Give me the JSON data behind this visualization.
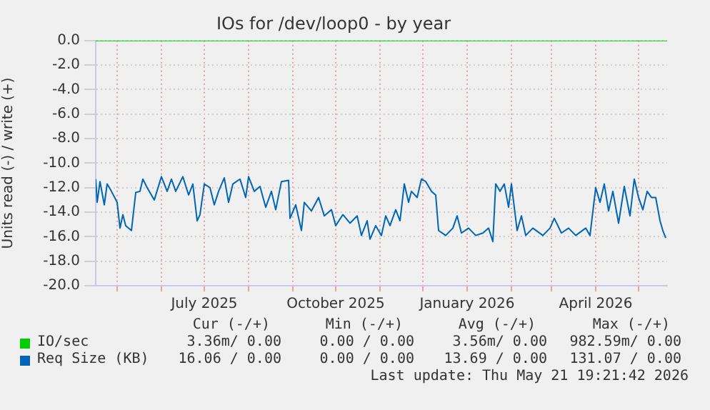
{
  "chart_data": {
    "type": "line",
    "title": "IOs for /dev/loop0 - by year",
    "ylabel": "Units read (-) / write (+)",
    "x": [
      "2025-04-16",
      "2025-04-17",
      "2025-04-19",
      "2025-04-22",
      "2025-04-24",
      "2025-04-27",
      "2025-05-01",
      "2025-05-03",
      "2025-05-05",
      "2025-05-07",
      "2025-05-11",
      "2025-05-14",
      "2025-05-17",
      "2025-05-19",
      "2025-05-22",
      "2025-05-27",
      "2025-06-01",
      "2025-06-05",
      "2025-06-08",
      "2025-06-11",
      "2025-06-16",
      "2025-06-20",
      "2025-06-23",
      "2025-06-26",
      "2025-06-28",
      "2025-07-01",
      "2025-07-05",
      "2025-07-08",
      "2025-07-11",
      "2025-07-15",
      "2025-07-18",
      "2025-07-21",
      "2025-07-26",
      "2025-07-30",
      "2025-08-01",
      "2025-08-05",
      "2025-08-09",
      "2025-08-13",
      "2025-08-17",
      "2025-08-20",
      "2025-08-24",
      "2025-08-29",
      "2025-08-30",
      "2025-09-03",
      "2025-09-07",
      "2025-09-09",
      "2025-09-14",
      "2025-09-19",
      "2025-09-23",
      "2025-09-28",
      "2025-10-01",
      "2025-10-06",
      "2025-10-11",
      "2025-10-16",
      "2025-10-19",
      "2025-10-23",
      "2025-10-25",
      "2025-10-29",
      "2025-11-02",
      "2025-11-05",
      "2025-11-08",
      "2025-11-12",
      "2025-11-15",
      "2025-11-18",
      "2025-11-21",
      "2025-11-23",
      "2025-11-27",
      "2025-11-30",
      "2025-12-03",
      "2025-12-07",
      "2025-12-10",
      "2025-12-12",
      "2025-12-17",
      "2025-12-22",
      "2025-12-25",
      "2025-12-28",
      "2026-01-02",
      "2026-01-07",
      "2026-01-12",
      "2026-01-16",
      "2026-01-19",
      "2026-01-21",
      "2026-01-24",
      "2026-01-27",
      "2026-01-30",
      "2026-02-01",
      "2026-02-05",
      "2026-02-08",
      "2026-02-11",
      "2026-02-16",
      "2026-02-23",
      "2026-02-28",
      "2026-03-03",
      "2026-03-08",
      "2026-03-13",
      "2026-03-18",
      "2026-03-25",
      "2026-03-28",
      "2026-04-01",
      "2026-04-04",
      "2026-04-07",
      "2026-04-10",
      "2026-04-13",
      "2026-04-17",
      "2026-04-21",
      "2026-04-25",
      "2026-04-28",
      "2026-05-01",
      "2026-05-04",
      "2026-05-07",
      "2026-05-10",
      "2026-05-13",
      "2026-05-16",
      "2026-05-18",
      "2026-05-20"
    ],
    "series": [
      {
        "name": "IO/sec",
        "color": "#00cc00",
        "x": [
          "2025-04-16",
          "2026-05-21"
        ],
        "values": [
          0,
          0
        ]
      },
      {
        "name": "Req Size (KB)",
        "color": "#0066b3",
        "values": [
          -11.3,
          -13.2,
          -11.5,
          -13.4,
          -11.7,
          -12.3,
          -13.2,
          -15.3,
          -14.2,
          -15.1,
          -15.5,
          -12.4,
          -12.3,
          -11.3,
          -12.0,
          -13.0,
          -11.1,
          -12.3,
          -11.3,
          -12.3,
          -11.1,
          -12.6,
          -11.7,
          -14.7,
          -14.2,
          -11.7,
          -12.0,
          -13.4,
          -12.3,
          -11.2,
          -13.2,
          -11.7,
          -11.3,
          -12.8,
          -11.1,
          -12.3,
          -11.9,
          -13.6,
          -12.3,
          -13.8,
          -11.5,
          -11.4,
          -14.5,
          -13.4,
          -15.5,
          -13.2,
          -13.9,
          -12.8,
          -14.3,
          -13.8,
          -15.1,
          -14.2,
          -14.9,
          -14.3,
          -15.9,
          -14.7,
          -16.2,
          -15.1,
          -15.9,
          -14.3,
          -15.1,
          -13.8,
          -14.7,
          -11.7,
          -13.2,
          -12.3,
          -12.8,
          -11.3,
          -11.5,
          -12.3,
          -12.6,
          -15.5,
          -15.9,
          -15.3,
          -14.3,
          -15.7,
          -15.3,
          -15.9,
          -15.7,
          -15.3,
          -16.4,
          -11.7,
          -12.3,
          -11.7,
          -13.6,
          -11.7,
          -15.5,
          -14.3,
          -15.9,
          -15.3,
          -15.9,
          -15.3,
          -14.5,
          -15.7,
          -15.3,
          -15.9,
          -15.3,
          -15.9,
          -12.0,
          -13.2,
          -11.7,
          -13.9,
          -12.3,
          -14.9,
          -11.9,
          -14.3,
          -11.3,
          -12.8,
          -13.8,
          -12.3,
          -12.8,
          -12.8,
          -14.7,
          -15.5,
          -16.1
        ]
      }
    ],
    "xlim": [
      "2025-04-16",
      "2026-05-21"
    ],
    "xticks": [
      {
        "value": "2025-05-01",
        "label": null
      },
      {
        "value": "2025-06-01",
        "label": null
      },
      {
        "value": "2025-07-01",
        "label": "July 2025"
      },
      {
        "value": "2025-08-01",
        "label": null
      },
      {
        "value": "2025-09-01",
        "label": null
      },
      {
        "value": "2025-10-01",
        "label": "October 2025"
      },
      {
        "value": "2025-11-01",
        "label": null
      },
      {
        "value": "2025-12-01",
        "label": null
      },
      {
        "value": "2026-01-01",
        "label": "January 2026"
      },
      {
        "value": "2026-02-01",
        "label": null
      },
      {
        "value": "2026-03-01",
        "label": null
      },
      {
        "value": "2026-04-01",
        "label": "April 2026"
      },
      {
        "value": "2026-05-01",
        "label": null
      }
    ],
    "ylim": [
      -20,
      0
    ],
    "yticks": [
      {
        "value": -20,
        "label": "-20.0"
      },
      {
        "value": -18,
        "label": "-18.0"
      },
      {
        "value": -16,
        "label": "-16.0"
      },
      {
        "value": -14,
        "label": "-14.0"
      },
      {
        "value": -12,
        "label": "-12.0"
      },
      {
        "value": -10,
        "label": "-10.0"
      },
      {
        "value": -8,
        "label": "-8.0"
      },
      {
        "value": -6,
        "label": "-6.0"
      },
      {
        "value": -4,
        "label": "-4.0"
      },
      {
        "value": -2,
        "label": "-2.0"
      },
      {
        "value": 0,
        "label": "0.0"
      }
    ],
    "grid": true,
    "legend": "bottom left",
    "marker": "none",
    "line_style": "solid",
    "annotations": [
      "Cur (-/+)",
      "Min (-/+)",
      "Avg (-/+)",
      "Max (-/+)",
      "3.36m/ 0.00",
      "0.00 / 0.00",
      "3.56m/ 0.00",
      "982.59m/ 0.00",
      "16.06 / 0.00",
      "0.00 / 0.00",
      "13.69 / 0.00",
      "131.07 / 0.00",
      "Last update: Thu May 21 19:21:42 2026"
    ]
  }
}
